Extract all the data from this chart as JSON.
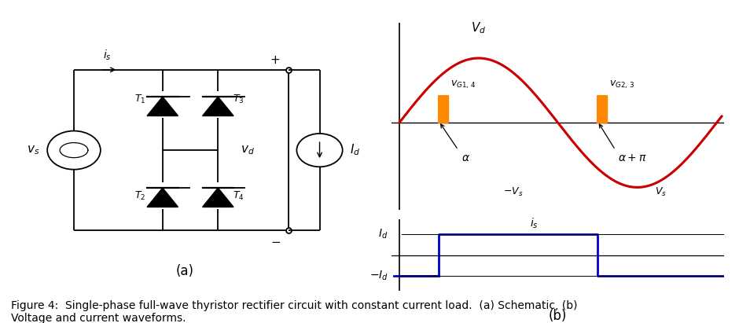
{
  "fig_width": 9.4,
  "fig_height": 4.11,
  "dpi": 100,
  "bg_color": "#ffffff",
  "caption": "Figure 4:  Single-phase full-wave thyristor rectifier circuit with constant current load.  (a) Schematic, (b)\nVoltage and current waveforms.",
  "caption_fontsize": 10,
  "label_a": "(a)",
  "label_b": "(b)",
  "vd_label": "$V_d$",
  "vg14_label": "$v_{G1,\\, 4}$",
  "vg23_label": "$v_{G2,\\, 3}$",
  "alpha_label": "$\\alpha$",
  "alpha_pi_label": "$\\alpha+\\pi$",
  "neg_vs_label": "$-V_s$",
  "vs_label": "$V_s$",
  "is_label": "$i_s$",
  "Id_label": "$I_d$",
  "neg_Id_label": "$-I_d$",
  "alpha_deg": 45,
  "sin_color": "#cc0000",
  "sin_dashed_color": "#4477cc",
  "gate_color": "#ff8800",
  "current_color": "#0000cc",
  "axis_color": "#000000",
  "text_color": "#000000",
  "circ_lw": 1.3
}
